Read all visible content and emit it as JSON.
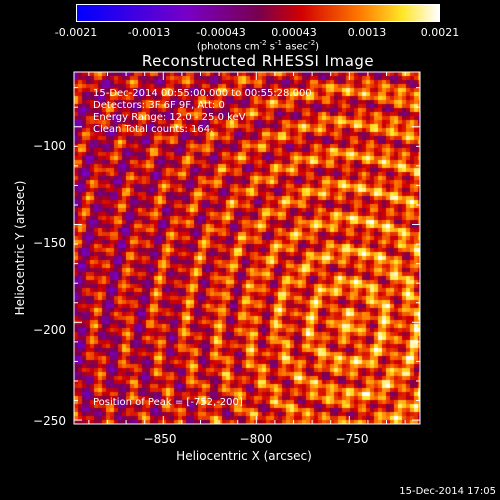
{
  "colorbar": {
    "ticks": [
      "-0.0021",
      "-0.0013",
      "-0.00043",
      "0.00043",
      "0.0013",
      "0.0021"
    ],
    "unit_base": "(photons cm",
    "unit_exp1": "-2",
    "unit_mid": " s",
    "unit_exp2": "-1",
    "unit_end": " asec",
    "unit_exp3": "-2",
    "unit_close": ")"
  },
  "info": {
    "line1": "15-Dec-2014 00:55:00.000 to 00:55:28.000",
    "line2": "Detectors: 3F 6F 9F, Att: 0",
    "line3": "Energy Range: 12.0 - 25.0 keV",
    "line4": "Clean    Total counts: 164.",
    "peak": "Position of Peak = [-752,-200]"
  },
  "footer": {
    "timestamp": "15-Dec-2014 17:05"
  },
  "chart_data": {
    "type": "heatmap",
    "title": "Reconstructed RHESSI Image",
    "xlabel": "Heliocentric X (arcsec)",
    "ylabel": "Heliocentric Y (arcsec)",
    "xlim": [
      -898,
      -712
    ],
    "ylim": [
      -252,
      -72
    ],
    "xticks": [
      -850,
      -800,
      -750
    ],
    "yticks": [
      -100,
      -150,
      -200,
      -250
    ],
    "xtick_labels": [
      "−850",
      "−800",
      "−750"
    ],
    "ytick_labels": [
      "−100",
      "−150",
      "−200",
      "−250"
    ],
    "zlim": [
      -0.0021,
      0.0021
    ],
    "colormap": "RHESSI 3 (blue-violet-red-yellow-white)",
    "peak": [
      -752,
      -200
    ]
  }
}
